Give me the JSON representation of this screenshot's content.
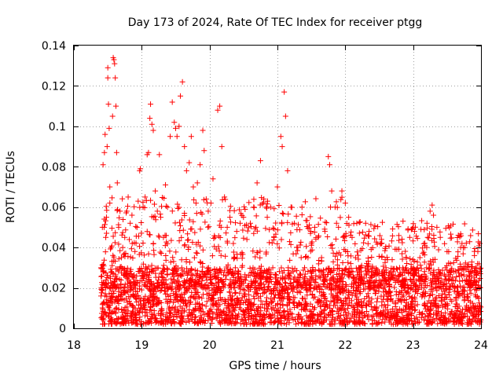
{
  "chart_data": {
    "type": "scatter",
    "title": "Day 173 of 2024, Rate Of TEC Index for receiver ptgg",
    "xlabel": "GPS time / hours",
    "ylabel": "ROTI / TECUs",
    "xlim": [
      18,
      24
    ],
    "ylim": [
      0,
      0.14
    ],
    "x_ticks": [
      18,
      19,
      20,
      21,
      22,
      23,
      24
    ],
    "y_ticks": [
      0,
      0.02,
      0.04,
      0.06,
      0.08,
      0.1,
      0.12,
      0.14
    ],
    "y_tick_labels": [
      "0",
      "0.02",
      "0.04",
      "0.06",
      "0.08",
      "0.1",
      "0.12",
      "0.14"
    ],
    "grid": true,
    "marker": "+",
    "colors": {
      "series": "#ff0000",
      "grid": "#a0a0a0",
      "frame": "#000000"
    },
    "series": [
      {
        "name": "ROTI",
        "points": [
          [
            18.4,
            0.016
          ],
          [
            18.4,
            0.03
          ],
          [
            18.42,
            0.05
          ],
          [
            18.43,
            0.081
          ],
          [
            18.45,
            0.087
          ],
          [
            18.46,
            0.096
          ],
          [
            18.47,
            0.02
          ],
          [
            18.47,
            0.045
          ],
          [
            18.48,
            0.055
          ],
          [
            18.49,
            0.09
          ],
          [
            18.5,
            0.129
          ],
          [
            18.5,
            0.124
          ],
          [
            18.51,
            0.111
          ],
          [
            18.52,
            0.099
          ],
          [
            18.53,
            0.07
          ],
          [
            18.53,
            0.062
          ],
          [
            18.55,
            0.028
          ],
          [
            18.55,
            0.04
          ],
          [
            18.57,
            0.105
          ],
          [
            18.58,
            0.134
          ],
          [
            18.59,
            0.133
          ],
          [
            18.6,
            0.131
          ],
          [
            18.61,
            0.124
          ],
          [
            18.62,
            0.11
          ],
          [
            18.63,
            0.087
          ],
          [
            18.64,
            0.072
          ],
          [
            18.66,
            0.05
          ],
          [
            18.68,
            0.058
          ],
          [
            18.7,
            0.035
          ],
          [
            18.72,
            0.04
          ],
          [
            18.75,
            0.045
          ],
          [
            18.78,
            0.058
          ],
          [
            18.8,
            0.065
          ],
          [
            18.83,
            0.052
          ],
          [
            18.86,
            0.042
          ],
          [
            18.9,
            0.038
          ],
          [
            18.93,
            0.05
          ],
          [
            18.97,
            0.078
          ],
          [
            18.98,
            0.079
          ],
          [
            19.02,
            0.06
          ],
          [
            19.05,
            0.065
          ],
          [
            19.08,
            0.086
          ],
          [
            19.1,
            0.087
          ],
          [
            19.12,
            0.104
          ],
          [
            19.13,
            0.111
          ],
          [
            19.15,
            0.101
          ],
          [
            19.17,
            0.098
          ],
          [
            19.2,
            0.068
          ],
          [
            19.23,
            0.058
          ],
          [
            19.26,
            0.086
          ],
          [
            19.28,
            0.055
          ],
          [
            19.32,
            0.045
          ],
          [
            19.35,
            0.071
          ],
          [
            19.38,
            0.06
          ],
          [
            19.42,
            0.095
          ],
          [
            19.45,
            0.112
          ],
          [
            19.48,
            0.102
          ],
          [
            19.5,
            0.099
          ],
          [
            19.52,
            0.095
          ],
          [
            19.55,
            0.1
          ],
          [
            19.57,
            0.115
          ],
          [
            19.6,
            0.122
          ],
          [
            19.63,
            0.09
          ],
          [
            19.66,
            0.078
          ],
          [
            19.7,
            0.082
          ],
          [
            19.73,
            0.095
          ],
          [
            19.76,
            0.07
          ],
          [
            19.8,
            0.062
          ],
          [
            19.82,
            0.072
          ],
          [
            19.86,
            0.081
          ],
          [
            19.9,
            0.098
          ],
          [
            19.92,
            0.088
          ],
          [
            19.95,
            0.064
          ],
          [
            19.98,
            0.058
          ],
          [
            20.02,
            0.062
          ],
          [
            20.05,
            0.074
          ],
          [
            20.08,
            0.045
          ],
          [
            20.12,
            0.108
          ],
          [
            20.15,
            0.11
          ],
          [
            20.18,
            0.09
          ],
          [
            20.22,
            0.065
          ],
          [
            20.26,
            0.05
          ],
          [
            20.3,
            0.055
          ],
          [
            20.35,
            0.042
          ],
          [
            20.4,
            0.048
          ],
          [
            20.45,
            0.052
          ],
          [
            20.5,
            0.055
          ],
          [
            20.55,
            0.044
          ],
          [
            20.6,
            0.052
          ],
          [
            20.65,
            0.06
          ],
          [
            20.7,
            0.072
          ],
          [
            20.75,
            0.083
          ],
          [
            20.8,
            0.064
          ],
          [
            20.85,
            0.055
          ],
          [
            20.9,
            0.06
          ],
          [
            20.95,
            0.045
          ],
          [
            21.0,
            0.07
          ],
          [
            21.05,
            0.095
          ],
          [
            21.07,
            0.09
          ],
          [
            21.1,
            0.117
          ],
          [
            21.12,
            0.105
          ],
          [
            21.15,
            0.078
          ],
          [
            21.2,
            0.06
          ],
          [
            21.25,
            0.052
          ],
          [
            21.3,
            0.04
          ],
          [
            21.35,
            0.035
          ],
          [
            21.4,
            0.03
          ],
          [
            21.45,
            0.035
          ],
          [
            21.5,
            0.042
          ],
          [
            21.55,
            0.05
          ],
          [
            21.6,
            0.045
          ],
          [
            21.65,
            0.035
          ],
          [
            21.7,
            0.048
          ],
          [
            21.75,
            0.085
          ],
          [
            21.77,
            0.081
          ],
          [
            21.8,
            0.068
          ],
          [
            21.85,
            0.06
          ],
          [
            21.9,
            0.05
          ],
          [
            21.95,
            0.068
          ],
          [
            22.0,
            0.062
          ],
          [
            22.05,
            0.055
          ],
          [
            22.1,
            0.045
          ],
          [
            22.15,
            0.035
          ],
          [
            22.2,
            0.03
          ],
          [
            22.3,
            0.052
          ],
          [
            22.35,
            0.048
          ],
          [
            22.4,
            0.03
          ],
          [
            22.5,
            0.028
          ],
          [
            22.6,
            0.03
          ],
          [
            22.7,
            0.025
          ],
          [
            22.8,
            0.03
          ],
          [
            22.9,
            0.035
          ],
          [
            22.95,
            0.045
          ],
          [
            23.0,
            0.05
          ],
          [
            23.02,
            0.048
          ],
          [
            23.1,
            0.035
          ],
          [
            23.2,
            0.04
          ],
          [
            23.25,
            0.058
          ],
          [
            23.28,
            0.061
          ],
          [
            23.3,
            0.056
          ],
          [
            23.35,
            0.05
          ],
          [
            23.4,
            0.045
          ],
          [
            23.5,
            0.038
          ],
          [
            23.55,
            0.032
          ],
          [
            23.6,
            0.028
          ],
          [
            23.7,
            0.04
          ],
          [
            23.72,
            0.042
          ],
          [
            23.8,
            0.03
          ],
          [
            23.9,
            0.025
          ],
          [
            23.95,
            0.032
          ]
        ],
        "dense_band": {
          "description": "dense low-ROTI cluster",
          "x_range": [
            18.4,
            24
          ],
          "y_range": [
            0.002,
            0.03
          ],
          "count": 2600
        },
        "mid_band": {
          "description": "scattered mid-level values",
          "x_range": [
            18.4,
            24
          ],
          "y_range": [
            0.02,
            0.065
          ],
          "count": 900
        }
      }
    ]
  }
}
